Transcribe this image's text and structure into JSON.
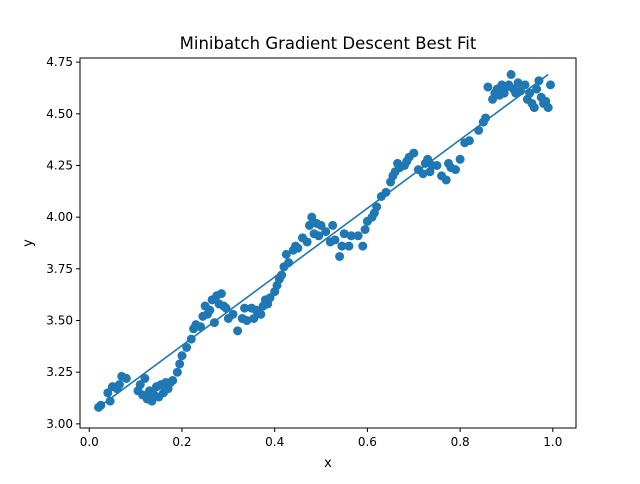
{
  "chart_data": {
    "type": "scatter",
    "title": "Minibatch Gradient Descent Best Fit",
    "xlabel": "x",
    "ylabel": "y",
    "xlim": [
      -0.02,
      1.05
    ],
    "ylim": [
      2.98,
      4.77
    ],
    "xticks": [
      0.0,
      0.2,
      0.4,
      0.6,
      0.8,
      1.0
    ],
    "xtick_labels": [
      "0.0",
      "0.2",
      "0.4",
      "0.6",
      "0.8",
      "1.0"
    ],
    "yticks": [
      3.0,
      3.25,
      3.5,
      3.75,
      4.0,
      4.25,
      4.5,
      4.75
    ],
    "ytick_labels": [
      "3.00",
      "3.25",
      "3.50",
      "3.75",
      "4.00",
      "4.25",
      "4.50",
      "4.75"
    ],
    "grid": false,
    "color": "#1f77b4",
    "scatter": {
      "x": [
        0.02,
        0.025,
        0.04,
        0.045,
        0.05,
        0.06,
        0.065,
        0.07,
        0.08,
        0.105,
        0.11,
        0.115,
        0.12,
        0.125,
        0.13,
        0.135,
        0.14,
        0.145,
        0.15,
        0.155,
        0.16,
        0.165,
        0.17,
        0.175,
        0.18,
        0.19,
        0.195,
        0.2,
        0.21,
        0.22,
        0.225,
        0.23,
        0.24,
        0.245,
        0.25,
        0.255,
        0.26,
        0.265,
        0.27,
        0.275,
        0.28,
        0.285,
        0.29,
        0.295,
        0.3,
        0.31,
        0.32,
        0.33,
        0.335,
        0.34,
        0.35,
        0.355,
        0.36,
        0.37,
        0.375,
        0.38,
        0.385,
        0.39,
        0.4,
        0.405,
        0.41,
        0.415,
        0.42,
        0.425,
        0.43,
        0.44,
        0.445,
        0.45,
        0.46,
        0.47,
        0.475,
        0.48,
        0.485,
        0.49,
        0.495,
        0.5,
        0.51,
        0.52,
        0.525,
        0.53,
        0.54,
        0.545,
        0.55,
        0.56,
        0.565,
        0.58,
        0.59,
        0.595,
        0.6,
        0.61,
        0.615,
        0.62,
        0.63,
        0.64,
        0.65,
        0.655,
        0.66,
        0.665,
        0.67,
        0.68,
        0.685,
        0.69,
        0.7,
        0.71,
        0.72,
        0.725,
        0.73,
        0.735,
        0.74,
        0.75,
        0.76,
        0.77,
        0.775,
        0.78,
        0.79,
        0.8,
        0.81,
        0.82,
        0.84,
        0.85,
        0.855,
        0.86,
        0.87,
        0.875,
        0.88,
        0.885,
        0.89,
        0.895,
        0.9,
        0.905,
        0.91,
        0.915,
        0.92,
        0.925,
        0.93,
        0.94,
        0.945,
        0.95,
        0.955,
        0.96,
        0.965,
        0.97,
        0.975,
        0.98,
        0.985,
        0.99,
        0.995
      ],
      "y": [
        3.08,
        3.09,
        3.15,
        3.11,
        3.18,
        3.17,
        3.19,
        3.23,
        3.22,
        3.16,
        3.19,
        3.14,
        3.22,
        3.12,
        3.16,
        3.11,
        3.14,
        3.18,
        3.13,
        3.19,
        3.15,
        3.2,
        3.17,
        3.2,
        3.21,
        3.25,
        3.29,
        3.33,
        3.37,
        3.41,
        3.46,
        3.48,
        3.47,
        3.52,
        3.57,
        3.53,
        3.55,
        3.6,
        3.49,
        3.62,
        3.58,
        3.63,
        3.57,
        3.56,
        3.51,
        3.53,
        3.45,
        3.51,
        3.56,
        3.5,
        3.56,
        3.51,
        3.55,
        3.53,
        3.57,
        3.6,
        3.58,
        3.61,
        3.64,
        3.67,
        3.7,
        3.72,
        3.76,
        3.82,
        3.78,
        3.84,
        3.86,
        3.85,
        3.9,
        3.88,
        3.96,
        4.0,
        3.92,
        3.97,
        3.91,
        3.96,
        3.93,
        3.88,
        3.96,
        3.89,
        3.81,
        3.86,
        3.92,
        3.86,
        3.91,
        3.91,
        3.86,
        3.94,
        3.98,
        4.0,
        4.02,
        4.05,
        4.1,
        4.12,
        4.17,
        4.2,
        4.22,
        4.26,
        4.24,
        4.25,
        4.27,
        4.29,
        4.31,
        4.23,
        4.21,
        4.26,
        4.28,
        4.22,
        4.25,
        4.25,
        4.2,
        4.18,
        4.26,
        4.24,
        4.23,
        4.28,
        4.36,
        4.37,
        4.42,
        4.46,
        4.48,
        4.63,
        4.57,
        4.6,
        4.62,
        4.59,
        4.64,
        4.6,
        4.63,
        4.64,
        4.69,
        4.62,
        4.6,
        4.65,
        4.61,
        4.64,
        4.57,
        4.6,
        4.55,
        4.53,
        4.62,
        4.66,
        4.58,
        4.55,
        4.56,
        4.53,
        4.64
      ]
    },
    "line": {
      "x": [
        0.02,
        0.99
      ],
      "y": [
        3.08,
        4.69
      ]
    }
  }
}
